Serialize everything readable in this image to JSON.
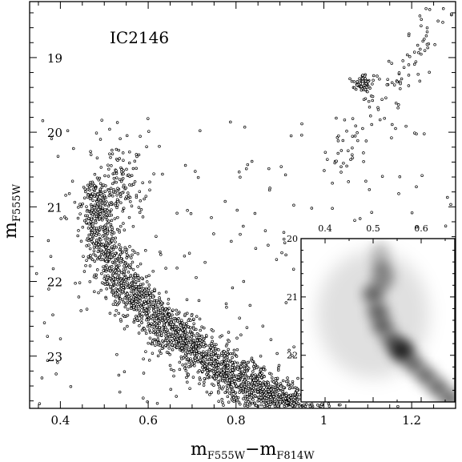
{
  "chart_data": [
    {
      "type": "scatter",
      "title": "",
      "annotation": "IC2146",
      "xlabel_main": "m",
      "xlabel_sub1": "F555W",
      "xlabel_sep": "−m",
      "xlabel_sub2": "F814W",
      "ylabel_main": "m",
      "ylabel_sub": "F555W",
      "xlim": [
        0.33,
        1.3
      ],
      "ylim": [
        23.7,
        18.25
      ],
      "y_inverted": true,
      "xticks": [
        0.4,
        0.6,
        0.8,
        1.0,
        1.2
      ],
      "xtick_labels": [
        "0.4",
        "0.6",
        "0.8",
        "1",
        "1.2"
      ],
      "yticks": [
        19,
        20,
        21,
        22,
        23
      ],
      "ytick_labels": [
        "19",
        "20",
        "21",
        "22",
        "23"
      ],
      "grid": false,
      "marker": "open-circle",
      "series_components": [
        {
          "component": "main-sequence-turnoff",
          "ridge_x": [
            0.47,
            0.48,
            0.52,
            0.58,
            0.65,
            0.72,
            0.8,
            0.88,
            0.95
          ],
          "ridge_y": [
            20.7,
            21.3,
            21.9,
            22.3,
            22.7,
            23.0,
            23.3,
            23.55,
            23.7
          ],
          "approx_points": 2400
        },
        {
          "component": "upper-turnoff-clump",
          "center": [
            0.54,
            20.7
          ],
          "approx_points": 120
        },
        {
          "component": "red-clump",
          "center": [
            1.09,
            19.35
          ],
          "approx_points": 60
        },
        {
          "component": "red-giant-branch",
          "x_range": [
            1.0,
            1.3
          ],
          "y_range": [
            18.3,
            20.6
          ],
          "approx_points": 110
        },
        {
          "component": "field-scatter",
          "x_range": [
            0.33,
            1.3
          ],
          "y_range": [
            19.8,
            23.7
          ],
          "approx_points": 250
        }
      ]
    },
    {
      "type": "heatmap",
      "role": "inset-density-map",
      "xlim": [
        0.35,
        0.67
      ],
      "ylim": [
        22.8,
        20.0
      ],
      "xticks": [
        0.4,
        0.5,
        0.6
      ],
      "xtick_labels": [
        "0.4",
        "0.5",
        "0.6"
      ],
      "yticks": [
        20,
        21,
        22
      ],
      "ytick_labels": [
        "20",
        "21",
        "22"
      ],
      "peak_density_at": [
        0.56,
        21.9
      ],
      "secondary_density_at": [
        0.52,
        20.65
      ]
    }
  ]
}
